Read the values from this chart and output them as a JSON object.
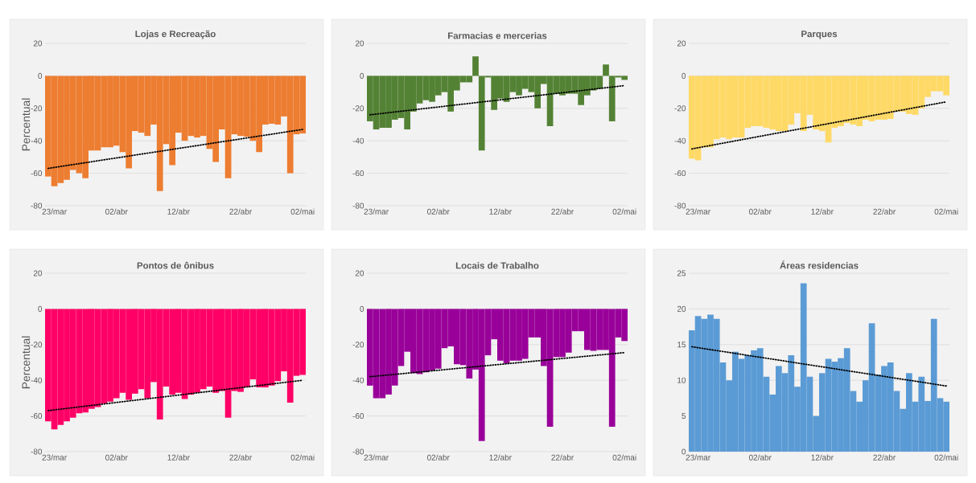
{
  "chart_data": [
    {
      "type": "bar",
      "title": "Lojas e Recreação",
      "ylabel": "Percentual",
      "categories": [
        null,
        "23/mar",
        null,
        null,
        null,
        null,
        null,
        null,
        null,
        null,
        null,
        "02/abr",
        null,
        null,
        null,
        null,
        null,
        null,
        null,
        null,
        null,
        "12/abr",
        null,
        null,
        null,
        null,
        null,
        null,
        null,
        null,
        null,
        "22/abr",
        null,
        null,
        null,
        null,
        null,
        null,
        null,
        null,
        null,
        "02/mai"
      ],
      "series": [
        {
          "color": "#ed7d31",
          "values": [
            -62,
            -68,
            -66,
            -64,
            -58,
            -60,
            -63,
            -46,
            -46,
            -44,
            -44,
            -43,
            -47,
            -57,
            -34,
            -35,
            -37,
            -30,
            -71,
            -42,
            -55,
            -35,
            -40,
            -37,
            -38,
            -37,
            -45,
            -53,
            -33,
            -63,
            -36,
            -37,
            -37.5,
            -40,
            -47,
            -30,
            -29.5,
            -30,
            -25,
            -60,
            -36,
            -35.5
          ]
        },
        {
          "type": "line",
          "color": "#000000",
          "line_style": "dotted",
          "values": [
            -57,
            null,
            null,
            null,
            null,
            null,
            null,
            null,
            null,
            null,
            null,
            null,
            null,
            null,
            null,
            null,
            null,
            null,
            null,
            null,
            null,
            null,
            null,
            null,
            null,
            null,
            null,
            null,
            null,
            null,
            null,
            null,
            null,
            null,
            null,
            null,
            null,
            null,
            null,
            null,
            null,
            -33
          ]
        }
      ],
      "ylim": [
        -80,
        20
      ],
      "yticks": [
        -80,
        -60,
        -40,
        -20,
        0,
        20
      ],
      "grid": "y"
    },
    {
      "type": "bar",
      "title": "Farmacias e mercerias",
      "categories": [
        null,
        "23/mar",
        null,
        null,
        null,
        null,
        null,
        null,
        null,
        null,
        null,
        "02/abr",
        null,
        null,
        null,
        null,
        null,
        null,
        null,
        null,
        null,
        "12/abr",
        null,
        null,
        null,
        null,
        null,
        null,
        null,
        null,
        null,
        "22/abr",
        null,
        null,
        null,
        null,
        null,
        null,
        null,
        null,
        null,
        "02/mai"
      ],
      "series": [
        {
          "color": "#548235",
          "values": [
            -28,
            -33,
            -32,
            -32,
            -27,
            -26,
            -33,
            -22,
            -17,
            -15,
            -16,
            -12,
            -10,
            -22,
            -9,
            -4,
            -4,
            12,
            -46,
            -1,
            -21,
            -14,
            -16,
            -10,
            -12,
            -8,
            -10,
            -20,
            -5,
            -31,
            -11,
            -12,
            -11,
            -11,
            -18,
            -12,
            -9,
            -8,
            7,
            -28,
            -1,
            -2.5
          ]
        },
        {
          "type": "line",
          "color": "#000000",
          "line_style": "dotted",
          "values": [
            -24,
            null,
            null,
            null,
            null,
            null,
            null,
            null,
            null,
            null,
            null,
            null,
            null,
            null,
            null,
            null,
            null,
            null,
            null,
            null,
            null,
            null,
            null,
            null,
            null,
            null,
            null,
            null,
            null,
            null,
            null,
            null,
            null,
            null,
            null,
            null,
            null,
            null,
            null,
            null,
            null,
            -6
          ]
        }
      ],
      "ylim": [
        -80,
        20
      ],
      "yticks": [
        -80,
        -60,
        -40,
        -20,
        0,
        20
      ],
      "grid": "y"
    },
    {
      "type": "bar",
      "title": "Parques",
      "categories": [
        null,
        "23/mar",
        null,
        null,
        null,
        null,
        null,
        null,
        null,
        null,
        null,
        "02/abr",
        null,
        null,
        null,
        null,
        null,
        null,
        null,
        null,
        null,
        "12/abr",
        null,
        null,
        null,
        null,
        null,
        null,
        null,
        null,
        null,
        "22/abr",
        null,
        null,
        null,
        null,
        null,
        null,
        null,
        null,
        null,
        "02/mai"
      ],
      "series": [
        {
          "color": "#ffd966",
          "values": [
            -51,
            -52,
            -44,
            -44,
            -39,
            -38,
            -39,
            -38,
            -38,
            -32,
            -31,
            -31,
            -32,
            -33,
            -34,
            -34,
            -30,
            -23,
            -34,
            -24,
            -33,
            -34,
            -41,
            -32,
            -31,
            -29,
            -30,
            -31,
            -27,
            -28,
            -27,
            -27,
            -26.5,
            -22,
            -22,
            -23.5,
            -24,
            -20,
            -13,
            -9.5,
            -9.5,
            -12
          ]
        },
        {
          "type": "line",
          "color": "#000000",
          "line_style": "dotted",
          "values": [
            -45,
            null,
            null,
            null,
            null,
            null,
            null,
            null,
            null,
            null,
            null,
            null,
            null,
            null,
            null,
            null,
            null,
            null,
            null,
            null,
            null,
            null,
            null,
            null,
            null,
            null,
            null,
            null,
            null,
            null,
            null,
            null,
            null,
            null,
            null,
            null,
            null,
            null,
            null,
            null,
            null,
            -16
          ]
        }
      ],
      "ylim": [
        -80,
        20
      ],
      "yticks": [
        -80,
        -60,
        -40,
        -20,
        0,
        20
      ],
      "grid": "y"
    },
    {
      "type": "bar",
      "title": "Pontos de ônibus",
      "ylabel": "Percentual",
      "categories": [
        null,
        "23/mar",
        null,
        null,
        null,
        null,
        null,
        null,
        null,
        null,
        null,
        "02/abr",
        null,
        null,
        null,
        null,
        null,
        null,
        null,
        null,
        null,
        "12/abr",
        null,
        null,
        null,
        null,
        null,
        null,
        null,
        null,
        null,
        "22/abr",
        null,
        null,
        null,
        null,
        null,
        null,
        null,
        null,
        null,
        "02/mai"
      ],
      "series": [
        {
          "color": "#ff0066",
          "values": [
            -63,
            -67.5,
            -65,
            -63,
            -61,
            -58.5,
            -58,
            -56,
            -55,
            -53,
            -52,
            -50,
            -47,
            -51,
            -47.5,
            -45,
            -50,
            -41,
            -62,
            -43.5,
            -48,
            -47,
            -50.5,
            -48,
            -47,
            -45,
            -43.5,
            -47,
            -46,
            -61,
            -46,
            -46.5,
            -44,
            -39.5,
            -44,
            -44,
            -43,
            -40.5,
            -35,
            -52.5,
            -37.5,
            -37
          ]
        },
        {
          "type": "line",
          "color": "#000000",
          "line_style": "dotted",
          "values": [
            -57,
            null,
            null,
            null,
            null,
            null,
            null,
            null,
            null,
            null,
            null,
            null,
            null,
            null,
            null,
            null,
            null,
            null,
            null,
            null,
            null,
            null,
            null,
            null,
            null,
            null,
            null,
            null,
            null,
            null,
            null,
            null,
            null,
            null,
            null,
            null,
            null,
            null,
            null,
            null,
            null,
            -40
          ]
        }
      ],
      "ylim": [
        -80,
        20
      ],
      "yticks": [
        -80,
        -60,
        -40,
        -20,
        0,
        20
      ],
      "grid": "y"
    },
    {
      "type": "bar",
      "title": "Locais de Trabalho",
      "categories": [
        null,
        "23/mar",
        null,
        null,
        null,
        null,
        null,
        null,
        null,
        null,
        null,
        "02/abr",
        null,
        null,
        null,
        null,
        null,
        null,
        null,
        null,
        null,
        "12/abr",
        null,
        null,
        null,
        null,
        null,
        null,
        null,
        null,
        null,
        "22/abr",
        null,
        null,
        null,
        null,
        null,
        null,
        null,
        null,
        null,
        "02/mai"
      ],
      "series": [
        {
          "color": "#990099",
          "values": [
            -43,
            -50,
            -50,
            -48,
            -43,
            -32,
            -24,
            -36,
            -36.5,
            -35.5,
            -34.5,
            -33.5,
            -22,
            -21,
            -31,
            -31.5,
            -39,
            -34,
            -74,
            -26,
            -17,
            -29,
            -30.5,
            -29,
            -29,
            -28,
            -16,
            -16,
            -32,
            -66,
            -27,
            -27,
            -24.5,
            -12.5,
            -12.5,
            -23,
            -23.5,
            -23,
            -23,
            -66,
            -16,
            -18
          ]
        },
        {
          "type": "line",
          "color": "#000000",
          "line_style": "dotted",
          "values": [
            -38,
            null,
            null,
            null,
            null,
            null,
            null,
            null,
            null,
            null,
            null,
            null,
            null,
            null,
            null,
            null,
            null,
            null,
            null,
            null,
            null,
            null,
            null,
            null,
            null,
            null,
            null,
            null,
            null,
            null,
            null,
            null,
            null,
            null,
            null,
            null,
            null,
            null,
            null,
            null,
            null,
            -24.5
          ]
        }
      ],
      "ylim": [
        -80,
        20
      ],
      "yticks": [
        -80,
        -60,
        -40,
        -20,
        0,
        20
      ],
      "grid": "y"
    },
    {
      "type": "bar",
      "title": "Áreas residencias",
      "categories": [
        null,
        "23/mar",
        null,
        null,
        null,
        null,
        null,
        null,
        null,
        null,
        null,
        "02/abr",
        null,
        null,
        null,
        null,
        null,
        null,
        null,
        null,
        null,
        "12/abr",
        null,
        null,
        null,
        null,
        null,
        null,
        null,
        null,
        null,
        "22/abr",
        null,
        null,
        null,
        null,
        null,
        null,
        null,
        null,
        null,
        "02/mai"
      ],
      "series": [
        {
          "color": "#5b9bd5",
          "values": [
            17,
            19,
            18.6,
            19.2,
            18.6,
            12.5,
            10,
            14,
            13,
            13.5,
            14.2,
            14.5,
            10.5,
            8,
            12,
            11,
            13.5,
            9.1,
            23.6,
            10.5,
            5,
            11,
            13,
            12.6,
            13.1,
            14.5,
            8.5,
            7,
            10,
            18,
            10.8,
            12,
            12.5,
            8.5,
            6,
            11,
            7,
            10.5,
            7.1,
            18.6,
            7.5,
            7
          ]
        },
        {
          "type": "line",
          "color": "#000000",
          "line_style": "dotted",
          "values": [
            14.7,
            null,
            null,
            null,
            null,
            null,
            null,
            null,
            null,
            null,
            null,
            null,
            null,
            null,
            null,
            null,
            null,
            null,
            null,
            null,
            null,
            null,
            null,
            null,
            null,
            null,
            null,
            null,
            null,
            null,
            null,
            null,
            null,
            null,
            null,
            null,
            null,
            null,
            null,
            null,
            null,
            9.2
          ]
        }
      ],
      "ylim": [
        0,
        25
      ],
      "yticks": [
        0,
        5,
        10,
        15,
        20,
        25
      ],
      "grid": "y"
    }
  ]
}
